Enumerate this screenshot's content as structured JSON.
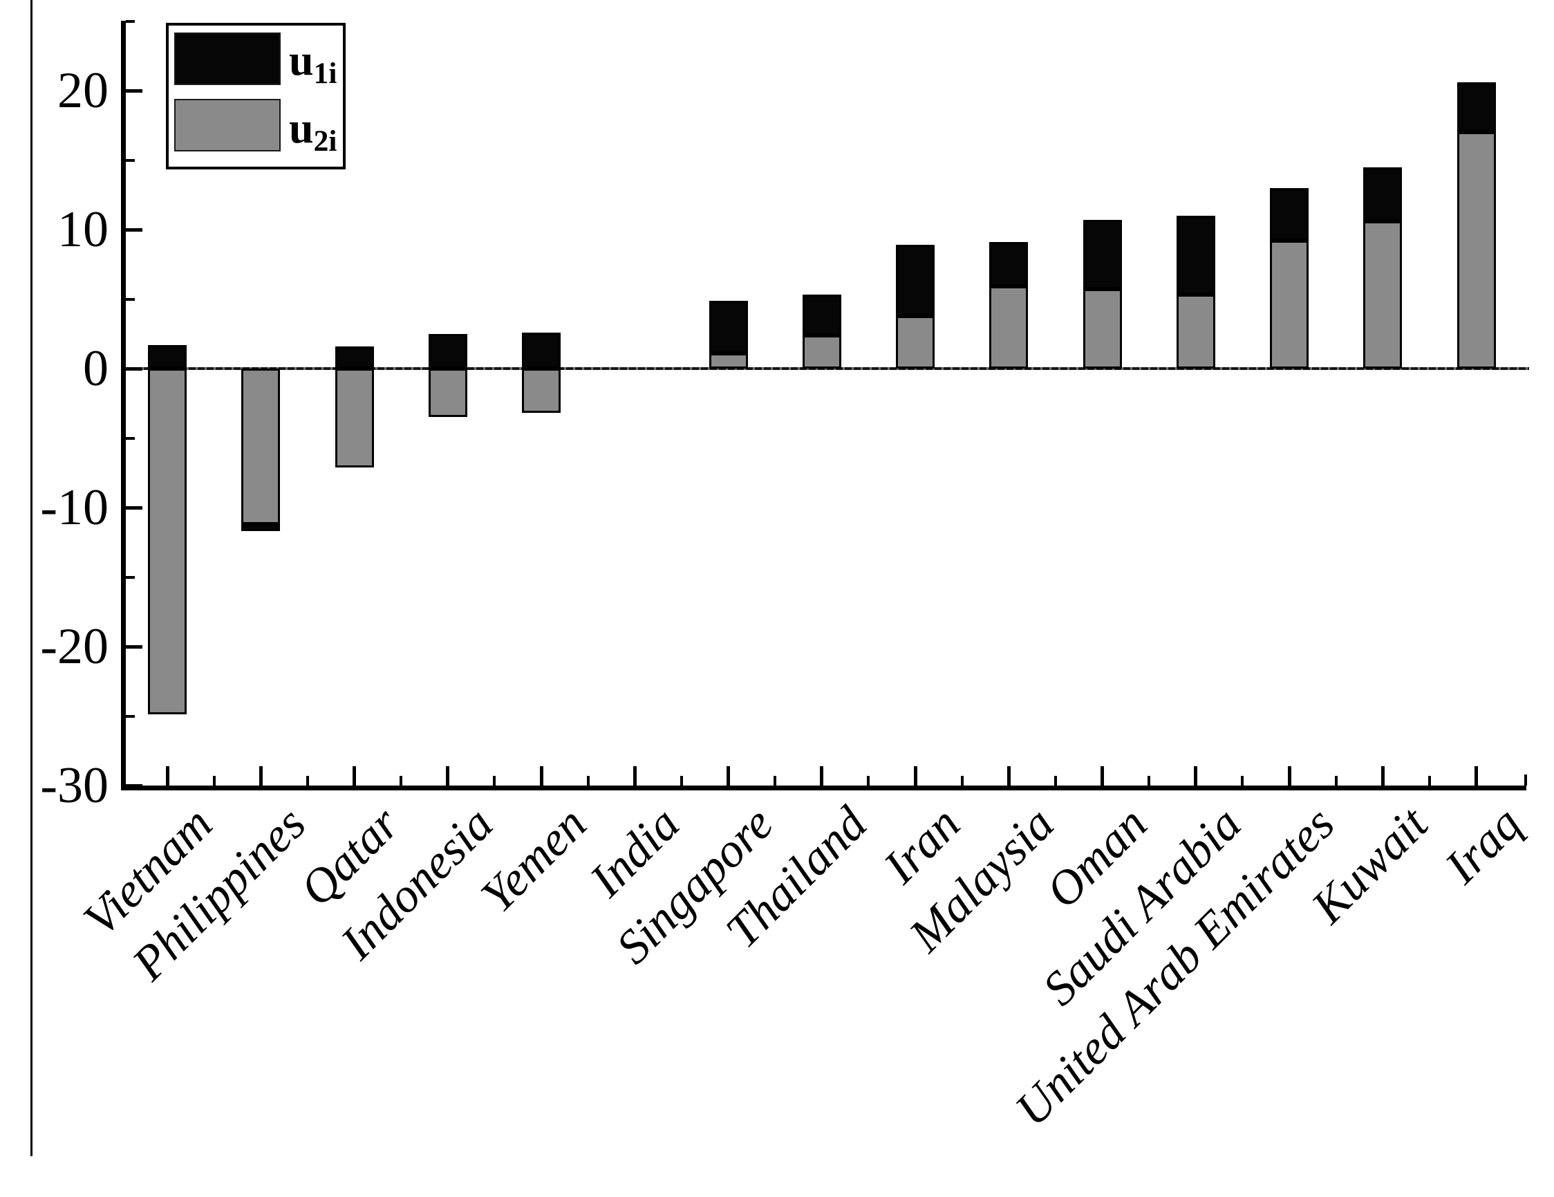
{
  "chart_data": {
    "type": "bar",
    "stacked": true,
    "title": "",
    "xlabel": "",
    "ylabel": "",
    "categories": [
      "Vietnam",
      "Philippines",
      "Qatar",
      "Indonesia",
      "Yemen",
      "India",
      "Singapore",
      "Thailand",
      "Iran",
      "Malaysia",
      "Oman",
      "Saudi Arabia",
      "United Arab Emirates",
      "Kuwait",
      "Iraq"
    ],
    "series": [
      {
        "name": "u1i",
        "color": "#060606",
        "values": [
          1.7,
          -0.5,
          1.6,
          2.5,
          2.6,
          0,
          3.8,
          2.9,
          5.1,
          3.2,
          5.0,
          5.7,
          3.8,
          3.9,
          3.6
        ]
      },
      {
        "name": "u2i",
        "color": "#8a8a8a",
        "values": [
          -24.9,
          -11.2,
          -7.1,
          -3.5,
          -3.2,
          0,
          1.1,
          2.4,
          3.8,
          5.9,
          5.7,
          5.3,
          9.2,
          10.6,
          17.0
        ]
      }
    ],
    "ylim": [
      -30,
      25
    ],
    "y_major_ticks": [
      20,
      10,
      0,
      -10,
      -20,
      -30
    ],
    "y_minor_ticks": [
      25,
      15,
      5,
      -5,
      -15,
      -25
    ],
    "grid": false,
    "legend_position": "top-left",
    "bar_edge_color": "#000000"
  },
  "legend": {
    "items": [
      {
        "base": "u",
        "sub": "1i",
        "color": "#060606"
      },
      {
        "base": "u",
        "sub": "2i",
        "color": "#8a8a8a"
      }
    ]
  },
  "colors": {
    "background": "#ffffff",
    "axis": "#000000",
    "black_bar": "#060606",
    "gray_bar": "#8a8a8a"
  }
}
